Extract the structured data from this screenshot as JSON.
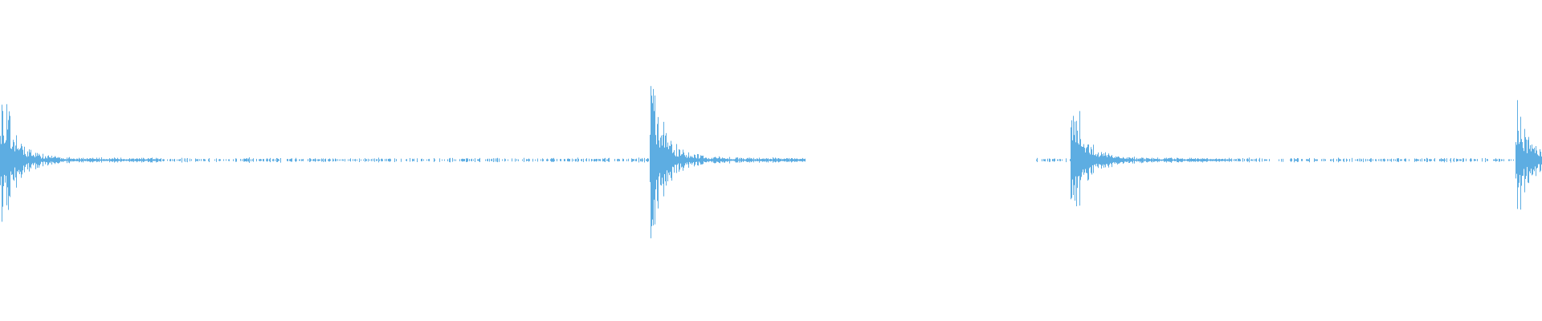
{
  "waveform": {
    "color": "#5dade2",
    "background": "#ffffff",
    "peak_amplitudes": [
      0.95,
      1.0,
      0.9,
      0.72
    ]
  }
}
